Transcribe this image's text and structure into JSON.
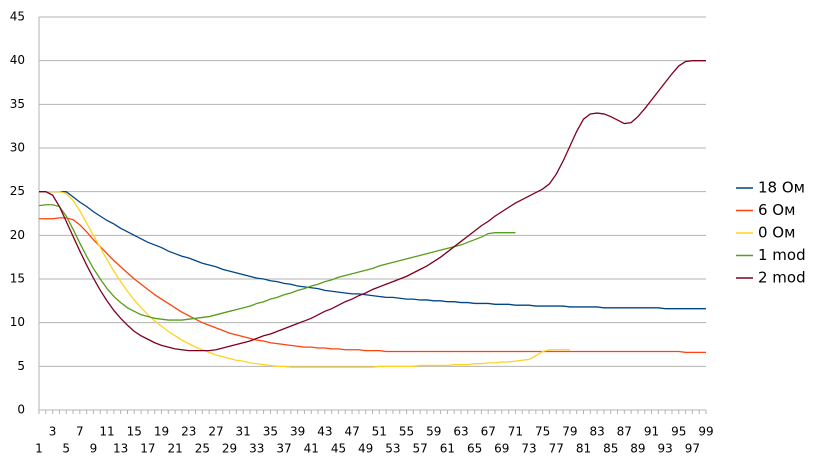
{
  "chart_data": {
    "type": "line",
    "categories": [
      1,
      null,
      3,
      null,
      5,
      null,
      7,
      null,
      9,
      null,
      11,
      null,
      13,
      null,
      15,
      null,
      17,
      null,
      19,
      null,
      21,
      null,
      23,
      null,
      25,
      null,
      27,
      null,
      29,
      null,
      31,
      null,
      33,
      null,
      35,
      null,
      37,
      null,
      39,
      null,
      41,
      null,
      43,
      null,
      45,
      null,
      47,
      null,
      49,
      null,
      51,
      null,
      53,
      null,
      55,
      null,
      57,
      null,
      59,
      null,
      61,
      null,
      63,
      null,
      65,
      null,
      67,
      null,
      69,
      null,
      71,
      null,
      73,
      null,
      75,
      null,
      77,
      null,
      79,
      null,
      81,
      null,
      83,
      null,
      85,
      null,
      87,
      null,
      89,
      null,
      91,
      null,
      93,
      null,
      95,
      null,
      97,
      null,
      99
    ],
    "ylim": [
      0,
      45
    ],
    "yticks": [
      0,
      5,
      10,
      15,
      20,
      25,
      30,
      35,
      40,
      45
    ],
    "grid": true,
    "legend": "right",
    "series": [
      {
        "name": "18 Ом",
        "color": "#004586",
        "values": [
          25,
          25,
          25,
          25,
          25,
          24.4,
          23.8,
          23.3,
          22.7,
          22.2,
          21.7,
          21.3,
          20.8,
          20.4,
          20.0,
          19.6,
          19.2,
          18.9,
          18.6,
          18.2,
          17.9,
          17.6,
          17.4,
          17.1,
          16.8,
          16.6,
          16.4,
          16.1,
          15.9,
          15.7,
          15.5,
          15.3,
          15.1,
          15.0,
          14.8,
          14.7,
          14.5,
          14.4,
          14.2,
          14.1,
          14.0,
          13.9,
          13.7,
          13.6,
          13.5,
          13.4,
          13.3,
          13.3,
          13.2,
          13.1,
          13.0,
          12.9,
          12.9,
          12.8,
          12.7,
          12.7,
          12.6,
          12.6,
          12.5,
          12.5,
          12.4,
          12.4,
          12.3,
          12.3,
          12.2,
          12.2,
          12.2,
          12.1,
          12.1,
          12.1,
          12.0,
          12.0,
          12.0,
          11.9,
          11.9,
          11.9,
          11.9,
          11.9,
          11.8,
          11.8,
          11.8,
          11.8,
          11.8,
          11.7,
          11.7,
          11.7,
          11.7,
          11.7,
          11.7,
          11.7,
          11.7,
          11.7,
          11.6,
          11.6,
          11.6,
          11.6,
          11.6,
          11.6,
          11.6
        ]
      },
      {
        "name": "6 Ом",
        "color": "#ff420e",
        "values": [
          21.9,
          21.9,
          21.9,
          22.0,
          22.0,
          21.8,
          21.2,
          20.4,
          19.5,
          18.7,
          17.9,
          17.1,
          16.4,
          15.7,
          15.0,
          14.4,
          13.8,
          13.2,
          12.7,
          12.2,
          11.7,
          11.2,
          10.8,
          10.4,
          10.0,
          9.7,
          9.4,
          9.1,
          8.8,
          8.6,
          8.4,
          8.2,
          8.0,
          7.9,
          7.7,
          7.6,
          7.5,
          7.4,
          7.3,
          7.2,
          7.2,
          7.1,
          7.1,
          7.0,
          7.0,
          6.9,
          6.9,
          6.9,
          6.8,
          6.8,
          6.8,
          6.7,
          6.7,
          6.7,
          6.7,
          6.7,
          6.7,
          6.7,
          6.7,
          6.7,
          6.7,
          6.7,
          6.7,
          6.7,
          6.7,
          6.7,
          6.7,
          6.7,
          6.7,
          6.7,
          6.7,
          6.7,
          6.7,
          6.7,
          6.7,
          6.7,
          6.7,
          6.7,
          6.7,
          6.7,
          6.7,
          6.7,
          6.7,
          6.7,
          6.7,
          6.7,
          6.7,
          6.7,
          6.7,
          6.7,
          6.7,
          6.7,
          6.7,
          6.7,
          6.7,
          6.6,
          6.6,
          6.6,
          6.6
        ]
      },
      {
        "name": "0 Ом",
        "color": "#ffd320",
        "values": [
          25,
          25,
          25,
          25,
          24.8,
          24.0,
          22.8,
          21.4,
          20.0,
          18.6,
          17.2,
          15.9,
          14.7,
          13.6,
          12.6,
          11.7,
          10.9,
          10.2,
          9.6,
          9.0,
          8.5,
          8.0,
          7.6,
          7.2,
          6.9,
          6.6,
          6.3,
          6.1,
          5.9,
          5.7,
          5.6,
          5.4,
          5.3,
          5.2,
          5.1,
          5.0,
          5.0,
          4.9,
          4.9,
          4.9,
          4.9,
          4.9,
          4.9,
          4.9,
          4.9,
          4.9,
          4.9,
          4.9,
          4.9,
          4.9,
          5.0,
          5.0,
          5.0,
          5.0,
          5.0,
          5.0,
          5.1,
          5.1,
          5.1,
          5.1,
          5.1,
          5.2,
          5.2,
          5.2,
          5.3,
          5.3,
          5.4,
          5.4,
          5.5,
          5.5,
          5.6,
          5.7,
          5.8,
          6.2,
          6.7,
          6.9,
          6.9,
          6.9,
          6.9,
          null,
          null,
          null,
          null,
          null,
          null,
          null,
          null,
          null,
          null,
          null,
          null,
          null,
          null,
          null,
          null,
          null,
          null,
          null,
          null
        ]
      },
      {
        "name": "1 mod",
        "color": "#579d1c",
        "values": [
          23.4,
          23.5,
          23.5,
          23.3,
          22.2,
          20.7,
          19.1,
          17.6,
          16.2,
          15.0,
          13.9,
          13.0,
          12.3,
          11.7,
          11.3,
          10.9,
          10.7,
          10.5,
          10.4,
          10.3,
          10.3,
          10.3,
          10.4,
          10.5,
          10.6,
          10.7,
          10.9,
          11.1,
          11.3,
          11.5,
          11.7,
          11.9,
          12.2,
          12.4,
          12.7,
          12.9,
          13.2,
          13.4,
          13.7,
          13.9,
          14.2,
          14.4,
          14.7,
          14.9,
          15.2,
          15.4,
          15.6,
          15.8,
          16.0,
          16.2,
          16.5,
          16.7,
          16.9,
          17.1,
          17.3,
          17.5,
          17.7,
          17.9,
          18.1,
          18.3,
          18.5,
          18.7,
          18.9,
          19.2,
          19.5,
          19.8,
          20.2,
          20.3,
          20.3,
          20.3,
          20.3,
          null,
          null,
          null,
          null,
          null,
          null,
          null,
          null,
          null,
          null,
          null,
          null,
          null,
          null,
          null,
          null,
          null,
          null,
          null,
          null,
          null,
          null,
          null,
          null,
          null,
          null,
          null,
          null
        ]
      },
      {
        "name": "2 mod",
        "color": "#7e0021",
        "values": [
          25.0,
          25.0,
          24.6,
          23.3,
          21.6,
          19.9,
          18.2,
          16.6,
          15.1,
          13.7,
          12.5,
          11.4,
          10.5,
          9.7,
          9.0,
          8.5,
          8.1,
          7.7,
          7.4,
          7.2,
          7.0,
          6.9,
          6.8,
          6.8,
          6.8,
          6.8,
          6.9,
          7.1,
          7.3,
          7.5,
          7.7,
          7.9,
          8.2,
          8.5,
          8.7,
          9.0,
          9.3,
          9.6,
          9.9,
          10.2,
          10.5,
          10.9,
          11.3,
          11.6,
          12.0,
          12.4,
          12.7,
          13.1,
          13.4,
          13.8,
          14.1,
          14.4,
          14.7,
          15.0,
          15.3,
          15.7,
          16.1,
          16.5,
          17.0,
          17.5,
          18.1,
          18.7,
          19.3,
          19.9,
          20.5,
          21.1,
          21.6,
          22.2,
          22.7,
          23.2,
          23.7,
          24.1,
          24.5,
          24.9,
          25.3,
          25.9,
          27.0,
          28.5,
          30.2,
          31.9,
          33.3,
          33.9,
          34.0,
          33.9,
          33.6,
          33.2,
          32.8,
          32.9,
          33.6,
          34.5,
          35.5,
          36.5,
          37.5,
          38.5,
          39.4,
          39.9,
          40.0,
          40.0,
          40.0
        ]
      }
    ]
  }
}
